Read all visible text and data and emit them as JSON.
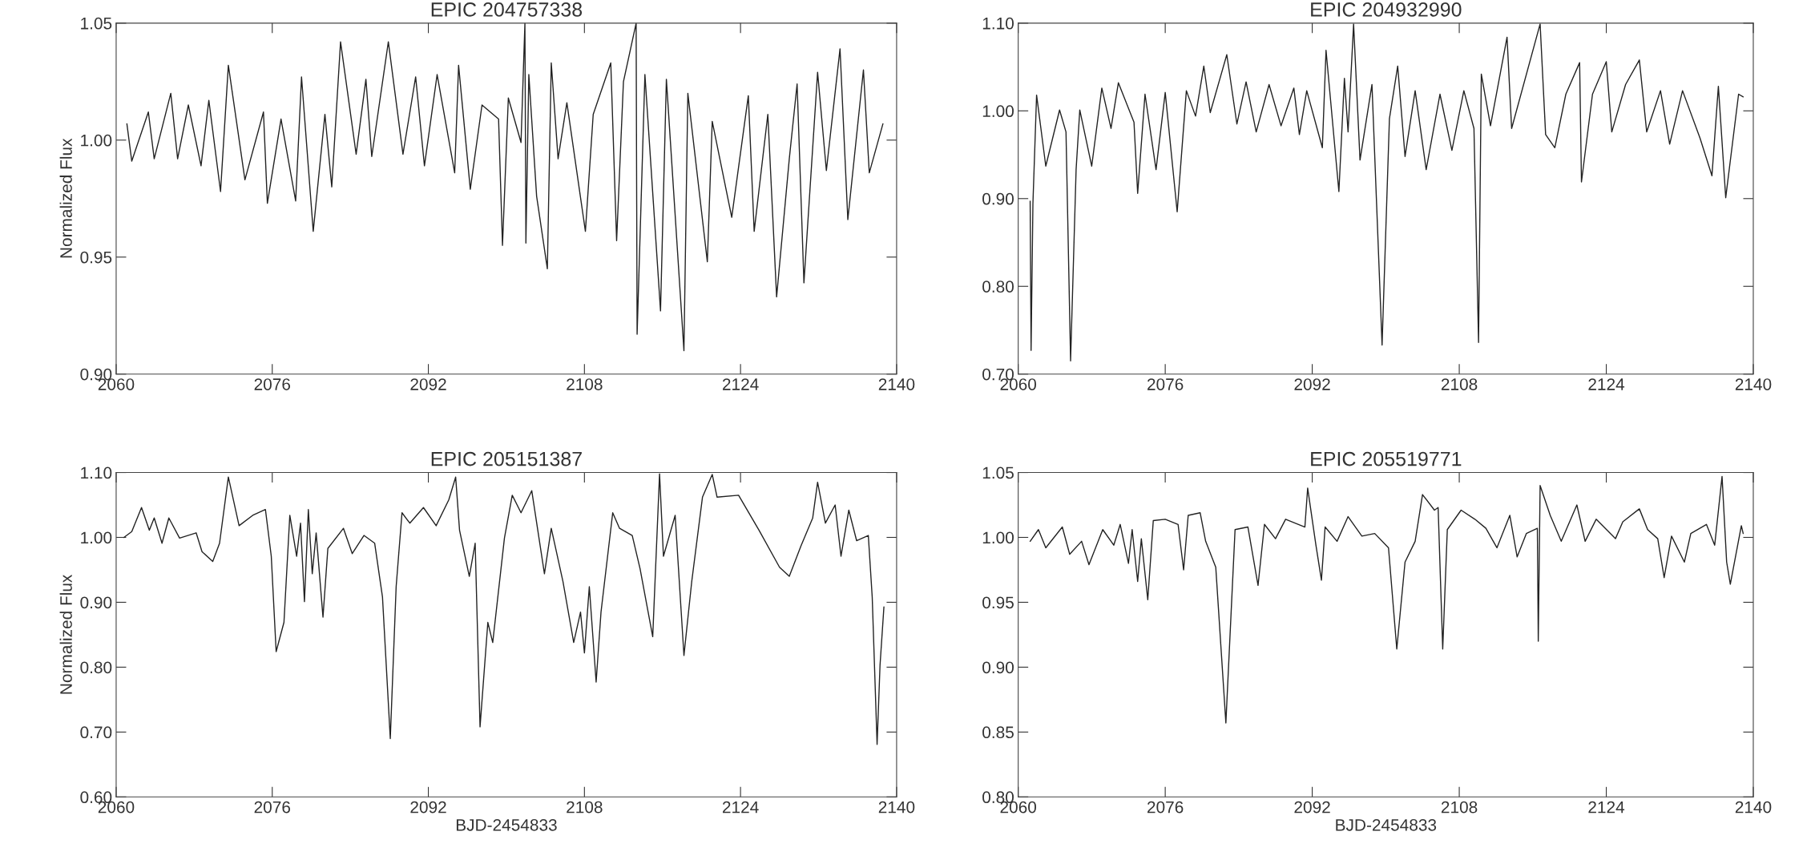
{
  "chart_data": [
    {
      "type": "line",
      "title": "EPIC 204757338",
      "ylabel": "Normalized Flux",
      "xlim": [
        2060,
        2140
      ],
      "xticks": [
        2060,
        2076,
        2092,
        2108,
        2124,
        2140
      ],
      "ylim": [
        0.9,
        1.05
      ],
      "yticks": [
        {
          "value": 0.9,
          "label": "0.90"
        },
        {
          "value": 0.95,
          "label": "0.95"
        },
        {
          "value": 1.0,
          "label": "1.00"
        },
        {
          "value": 1.05,
          "label": "1.05"
        }
      ],
      "series": [
        {
          "color": "#222222",
          "x": [
            2061.1,
            2061.6,
            2063.3,
            2063.9,
            2065.6,
            2066.3,
            2067.4,
            2068.7,
            2069.5,
            2070.7,
            2071.5,
            2073.2,
            2075.1,
            2075.5,
            2076.9,
            2078.4,
            2079.0,
            2080.2,
            2081.4,
            2082.1,
            2083.0,
            2084.6,
            2085.6,
            2086.2,
            2087.9,
            2089.4,
            2090.7,
            2091.6,
            2092.9,
            2094.7,
            2095.1,
            2096.3,
            2097.5,
            2099.2,
            2099.6,
            2100.2,
            2101.5,
            2101.9,
            2102.0,
            2102.3,
            2103.1,
            2104.2,
            2104.6,
            2105.3,
            2106.2,
            2108.1,
            2108.9,
            2110.7,
            2111.3,
            2112.0,
            2113.3,
            2113.4,
            2114.2,
            2115.8,
            2116.4,
            2118.2,
            2118.6,
            2120.6,
            2121.1,
            2123.1,
            2124.8,
            2125.4,
            2126.8,
            2127.7,
            2129.0,
            2129.8,
            2130.5,
            2131.9,
            2132.8,
            2134.2,
            2135.0,
            2136.6,
            2137.2,
            2138.6
          ],
          "values": [
            1.007,
            0.991,
            1.012,
            0.992,
            1.02,
            0.992,
            1.015,
            0.989,
            1.017,
            0.978,
            1.032,
            0.983,
            1.012,
            0.973,
            1.009,
            0.974,
            1.027,
            0.961,
            1.011,
            0.98,
            1.042,
            0.994,
            1.026,
            0.993,
            1.042,
            0.994,
            1.027,
            0.989,
            1.028,
            0.986,
            1.032,
            0.979,
            1.015,
            1.009,
            0.955,
            1.018,
            0.999,
            1.05,
            0.956,
            1.028,
            0.976,
            0.945,
            1.033,
            0.992,
            1.016,
            0.961,
            1.011,
            1.033,
            0.957,
            1.025,
            1.05,
            0.917,
            1.028,
            0.927,
            1.026,
            0.91,
            1.02,
            0.948,
            1.008,
            0.967,
            1.019,
            0.961,
            1.011,
            0.933,
            0.992,
            1.024,
            0.939,
            1.029,
            0.987,
            1.039,
            0.966,
            1.03,
            0.986,
            1.007
          ]
        }
      ]
    },
    {
      "type": "line",
      "title": "EPIC 204932990",
      "xlim": [
        2060,
        2140
      ],
      "xticks": [
        2060,
        2076,
        2092,
        2108,
        2124,
        2140
      ],
      "ylim": [
        0.7,
        1.1
      ],
      "yticks": [
        {
          "value": 0.7,
          "label": "0.70"
        },
        {
          "value": 0.8,
          "label": "0.80"
        },
        {
          "value": 0.9,
          "label": "0.90"
        },
        {
          "value": 1.0,
          "label": "1.00"
        },
        {
          "value": 1.1,
          "label": "1.10"
        }
      ],
      "series": [
        {
          "color": "#222222",
          "x": [
            2061.3,
            2061.4,
            2061.6,
            2062.0,
            2063.0,
            2064.5,
            2065.2,
            2065.7,
            2066.3,
            2066.7,
            2068.0,
            2069.1,
            2070.1,
            2070.9,
            2072.6,
            2073.0,
            2073.8,
            2075.0,
            2076.0,
            2077.3,
            2078.3,
            2079.3,
            2080.2,
            2080.9,
            2082.7,
            2083.8,
            2084.8,
            2085.9,
            2087.3,
            2088.6,
            2090.0,
            2090.6,
            2091.4,
            2093.1,
            2093.5,
            2094.9,
            2095.5,
            2095.9,
            2096.5,
            2097.2,
            2098.5,
            2099.6,
            2100.4,
            2101.3,
            2102.1,
            2103.2,
            2104.4,
            2105.9,
            2107.2,
            2108.5,
            2109.6,
            2110.1,
            2110.4,
            2111.4,
            2113.2,
            2113.7,
            2116.8,
            2117.4,
            2118.4,
            2119.6,
            2121.1,
            2121.3,
            2122.5,
            2124.0,
            2124.6,
            2126.1,
            2127.6,
            2128.4,
            2129.9,
            2130.9,
            2132.3,
            2134.2,
            2135.5,
            2136.2,
            2137.0,
            2138.4,
            2138.9
          ],
          "values": [
            0.897,
            0.727,
            0.894,
            1.018,
            0.937,
            1.001,
            0.976,
            0.715,
            0.933,
            1.001,
            0.937,
            1.026,
            0.98,
            1.032,
            0.987,
            0.906,
            1.019,
            0.933,
            1.021,
            0.885,
            1.023,
            0.994,
            1.051,
            0.998,
            1.064,
            0.985,
            1.033,
            0.976,
            1.03,
            0.983,
            1.026,
            0.973,
            1.023,
            0.958,
            1.069,
            0.908,
            1.037,
            0.976,
            1.099,
            0.944,
            1.03,
            0.733,
            0.991,
            1.051,
            0.948,
            1.023,
            0.933,
            1.019,
            0.955,
            1.023,
            0.98,
            0.736,
            1.042,
            0.983,
            1.084,
            0.98,
            1.099,
            0.973,
            0.958,
            1.019,
            1.055,
            0.919,
            1.019,
            1.056,
            0.976,
            1.03,
            1.058,
            0.976,
            1.023,
            0.962,
            1.023,
            0.969,
            0.926,
            1.028,
            0.901,
            1.019,
            1.016
          ]
        }
      ]
    },
    {
      "type": "line",
      "title": "EPIC 205151387",
      "ylabel": "Normalized Flux",
      "xlabel": "BJD-2454833",
      "xlim": [
        2060,
        2140
      ],
      "xticks": [
        2060,
        2076,
        2092,
        2108,
        2124,
        2140
      ],
      "ylim": [
        0.6,
        1.1
      ],
      "yticks": [
        {
          "value": 0.6,
          "label": "0.60"
        },
        {
          "value": 0.7,
          "label": "0.70"
        },
        {
          "value": 0.8,
          "label": "0.80"
        },
        {
          "value": 0.9,
          "label": "0.90"
        },
        {
          "value": 1.0,
          "label": "1.00"
        },
        {
          "value": 1.1,
          "label": "1.10"
        }
      ],
      "series": [
        {
          "color": "#222222",
          "x": [
            2060.8,
            2061.6,
            2062.6,
            2063.4,
            2063.9,
            2064.7,
            2065.4,
            2066.5,
            2068.2,
            2068.8,
            2069.9,
            2070.6,
            2071.5,
            2072.6,
            2074.0,
            2075.3,
            2075.9,
            2076.4,
            2077.2,
            2077.8,
            2078.5,
            2078.9,
            2079.3,
            2079.7,
            2080.1,
            2080.5,
            2081.2,
            2081.7,
            2083.3,
            2084.2,
            2085.4,
            2086.5,
            2087.3,
            2088.1,
            2088.7,
            2089.3,
            2090.1,
            2091.5,
            2092.8,
            2094.1,
            2094.8,
            2095.2,
            2096.2,
            2096.8,
            2097.3,
            2098.1,
            2098.6,
            2099.8,
            2100.6,
            2101.5,
            2102.6,
            2103.9,
            2104.6,
            2105.8,
            2106.9,
            2107.6,
            2108.0,
            2108.5,
            2109.2,
            2109.7,
            2110.9,
            2111.6,
            2112.9,
            2113.7,
            2115.0,
            2115.7,
            2116.1,
            2117.3,
            2118.2,
            2119.0,
            2120.1,
            2121.1,
            2121.6,
            2123.8,
            2125.9,
            2128.0,
            2129.0,
            2130.2,
            2131.4,
            2131.9,
            2132.7,
            2133.7,
            2134.3,
            2135.1,
            2135.9,
            2137.1,
            2137.5,
            2138.0,
            2138.3,
            2138.7
          ],
          "values": [
            1.0,
            1.009,
            1.046,
            1.011,
            1.03,
            0.991,
            1.03,
            0.999,
            1.007,
            0.978,
            0.963,
            0.991,
            1.093,
            1.018,
            1.034,
            1.043,
            0.971,
            0.824,
            0.869,
            1.034,
            0.971,
            1.022,
            0.901,
            1.043,
            0.944,
            1.007,
            0.877,
            0.983,
            1.014,
            0.975,
            1.003,
            0.991,
            0.908,
            0.69,
            0.924,
            1.038,
            1.022,
            1.046,
            1.018,
            1.058,
            1.093,
            1.011,
            0.94,
            0.991,
            0.708,
            0.869,
            0.838,
            0.999,
            1.065,
            1.038,
            1.072,
            0.944,
            1.014,
            0.932,
            0.838,
            0.885,
            0.822,
            0.924,
            0.777,
            0.885,
            1.038,
            1.014,
            1.003,
            0.952,
            0.847,
            1.098,
            0.971,
            1.034,
            0.818,
            0.932,
            1.062,
            1.097,
            1.062,
            1.065,
            1.011,
            0.954,
            0.94,
            0.987,
            1.03,
            1.085,
            1.022,
            1.05,
            0.971,
            1.042,
            0.995,
            1.003,
            0.908,
            0.681,
            0.803,
            0.893
          ]
        }
      ]
    },
    {
      "type": "line",
      "title": "EPIC 205519771",
      "xlabel": "BJD-2454833",
      "xlim": [
        2060,
        2140
      ],
      "xticks": [
        2060,
        2076,
        2092,
        2108,
        2124,
        2140
      ],
      "ylim": [
        0.8,
        1.05
      ],
      "yticks": [
        {
          "value": 0.8,
          "label": "0.80"
        },
        {
          "value": 0.85,
          "label": "0.85"
        },
        {
          "value": 0.9,
          "label": "0.90"
        },
        {
          "value": 0.95,
          "label": "0.95"
        },
        {
          "value": 1.0,
          "label": "1.00"
        },
        {
          "value": 1.05,
          "label": "1.05"
        }
      ],
      "series": [
        {
          "color": "#222222",
          "x": [
            2061.3,
            2062.2,
            2063.0,
            2064.8,
            2065.6,
            2066.9,
            2067.7,
            2069.2,
            2070.4,
            2071.1,
            2072.0,
            2072.4,
            2073.0,
            2073.4,
            2074.1,
            2074.7,
            2076.0,
            2077.4,
            2078.0,
            2078.5,
            2079.8,
            2080.4,
            2081.5,
            2082.6,
            2083.6,
            2085.0,
            2086.1,
            2086.8,
            2088.0,
            2089.1,
            2091.2,
            2091.5,
            2092.4,
            2093.0,
            2093.4,
            2094.7,
            2095.9,
            2097.4,
            2098.8,
            2100.3,
            2101.2,
            2102.1,
            2103.2,
            2104.0,
            2105.3,
            2105.7,
            2106.2,
            2106.7,
            2108.2,
            2109.7,
            2110.9,
            2112.1,
            2113.5,
            2114.3,
            2115.3,
            2116.5,
            2116.6,
            2116.8,
            2117.9,
            2119.1,
            2120.8,
            2121.7,
            2122.9,
            2125.0,
            2125.8,
            2127.6,
            2128.5,
            2129.6,
            2130.3,
            2131.1,
            2132.5,
            2133.2,
            2134.9,
            2135.8,
            2136.6,
            2137.1,
            2137.5,
            2138.7,
            2138.9
          ],
          "values": [
            0.997,
            1.006,
            0.992,
            1.008,
            0.987,
            0.997,
            0.979,
            1.006,
            0.994,
            1.01,
            0.98,
            1.006,
            0.966,
            0.999,
            0.952,
            1.013,
            1.014,
            1.01,
            0.975,
            1.017,
            1.019,
            0.997,
            0.977,
            0.857,
            1.006,
            1.008,
            0.963,
            1.01,
            0.999,
            1.014,
            1.008,
            1.038,
            0.994,
            0.967,
            1.008,
            0.997,
            1.016,
            1.001,
            1.003,
            0.992,
            0.914,
            0.981,
            0.997,
            1.033,
            1.021,
            1.023,
            0.914,
            1.006,
            1.021,
            1.014,
            1.007,
            0.992,
            1.017,
            0.985,
            1.003,
            1.007,
            0.92,
            1.04,
            1.017,
            0.997,
            1.025,
            0.997,
            1.014,
            0.999,
            1.012,
            1.022,
            1.006,
            0.999,
            0.969,
            1.001,
            0.981,
            1.003,
            1.01,
            0.994,
            1.047,
            0.981,
            0.964,
            1.009,
            1.003
          ]
        }
      ]
    }
  ]
}
